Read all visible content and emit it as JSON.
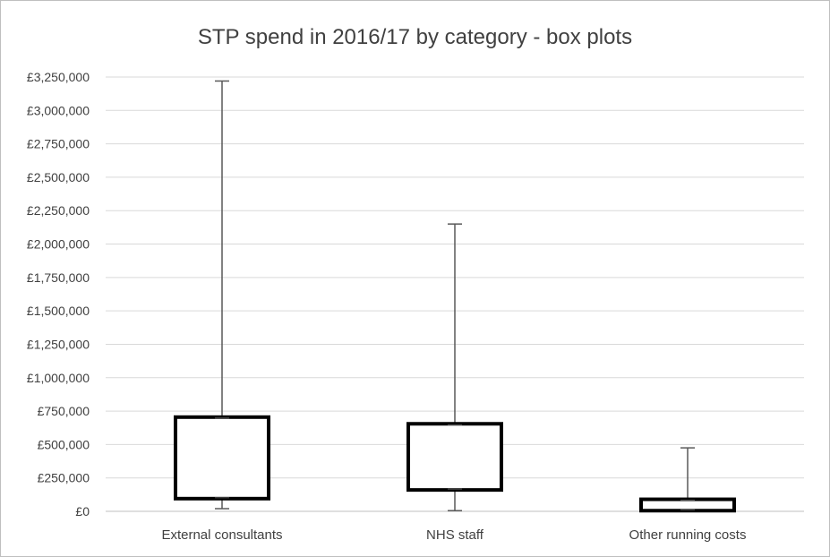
{
  "chart_data": {
    "type": "box",
    "title": "STP spend in 2016/17 by category - box plots",
    "xlabel": "",
    "ylabel": "",
    "ylim": [
      0,
      3250000
    ],
    "y_ticks": [
      0,
      250000,
      500000,
      750000,
      1000000,
      1250000,
      1500000,
      1750000,
      2000000,
      2250000,
      2500000,
      2750000,
      3000000,
      3250000
    ],
    "y_tick_labels": [
      "£0",
      "£250,000",
      "£500,000",
      "£750,000",
      "£1,000,000",
      "£1,250,000",
      "£1,500,000",
      "£1,750,000",
      "£2,000,000",
      "£2,250,000",
      "£2,500,000",
      "£2,750,000",
      "£3,000,000",
      "£3,250,000"
    ],
    "grid": true,
    "legend": "none",
    "categories": [
      "External consultants",
      "NHS staff",
      "Other running costs"
    ],
    "boxes": [
      {
        "category": "External consultants",
        "min": 20000,
        "q1": 95000,
        "q3": 705000,
        "max": 3220000
      },
      {
        "category": "NHS staff",
        "min": 5000,
        "q1": 160000,
        "q3": 655000,
        "max": 2150000
      },
      {
        "category": "Other running costs",
        "min": 0,
        "q1": 5000,
        "q3": 90000,
        "max": 475000
      }
    ],
    "colors": {
      "box_edge": "#000000",
      "whisker": "#595959",
      "grid": "#d9d9d9",
      "axis": "#bfbfbf",
      "text": "#404040"
    }
  }
}
